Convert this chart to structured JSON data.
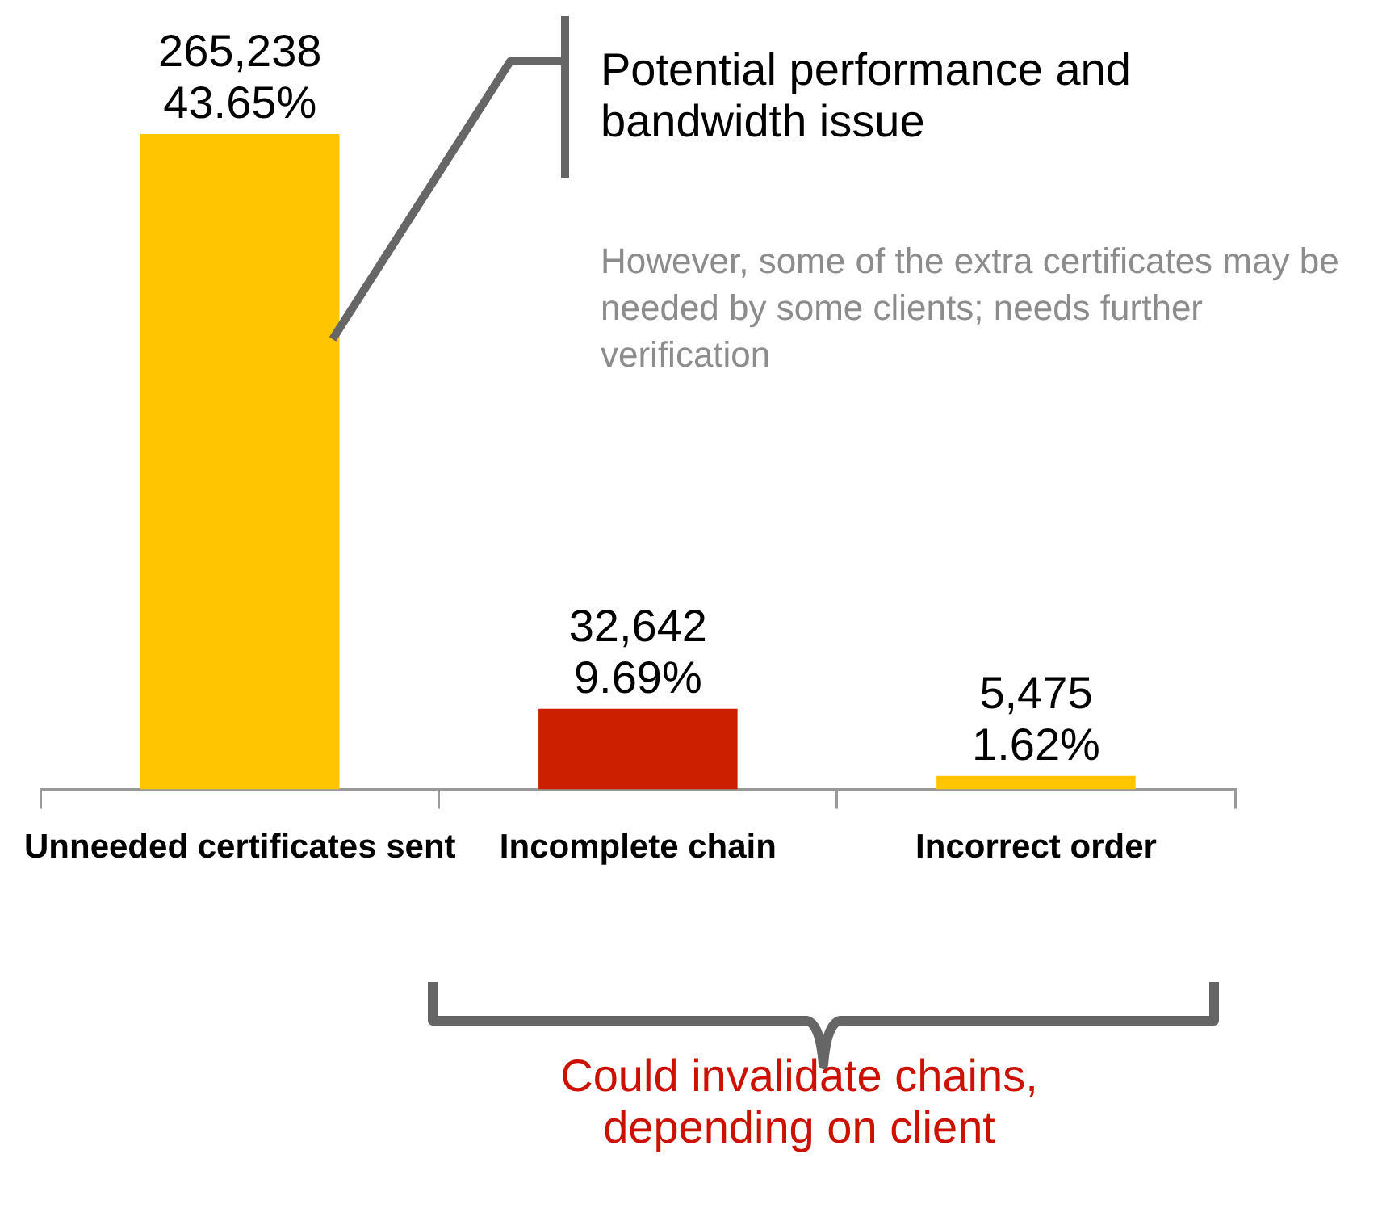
{
  "chart_data": {
    "type": "bar",
    "categories": [
      "Unneeded certificates sent",
      "Incomplete chain",
      "Incorrect order"
    ],
    "values": [
      265238,
      32642,
      5475
    ],
    "colors": [
      "#ffc600",
      "#cc1f00",
      "#ffc600"
    ],
    "value_labels": [
      "265,238\n43.65%",
      "32,642\n9.69%",
      "5,475\n1.62%"
    ],
    "tick_labels": "x",
    "annotations": [
      "Potential performance and bandwidth issue",
      "However, some of the extra certificates may be needed by some clients; needs further verification",
      "Could invalidate chains, depending on client"
    ]
  }
}
